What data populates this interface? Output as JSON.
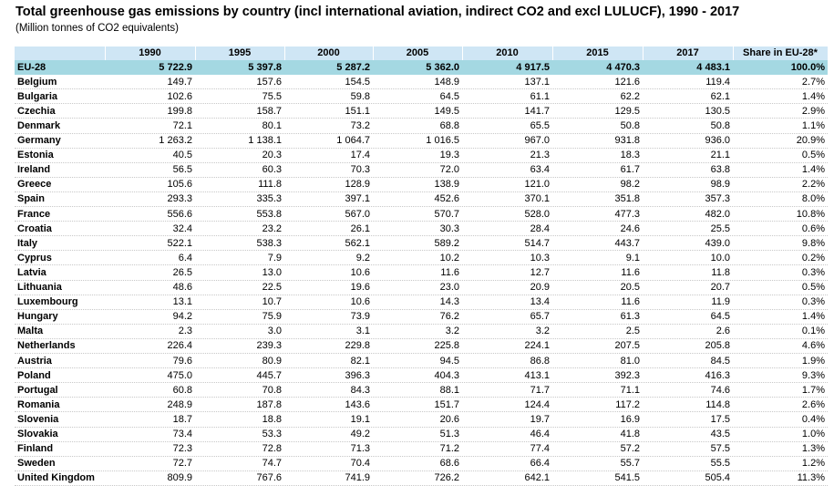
{
  "header": {
    "title": "Total greenhouse gas emissions by country (incl international aviation, indirect CO2 and excl LULUCF), 1990 - 2017",
    "subtitle": "(Million tonnes of CO2 equivalents)"
  },
  "table": {
    "columns": [
      "1990",
      "1995",
      "2000",
      "2005",
      "2010",
      "2015",
      "2017",
      "Share in EU-28*"
    ],
    "rows": [
      [
        "EU-28",
        "5 722.9",
        "5 397.8",
        "5 287.2",
        "5 362.0",
        "4 917.5",
        "4 470.3",
        "4 483.1",
        "100.0%"
      ],
      [
        "Belgium",
        "149.7",
        "157.6",
        "154.5",
        "148.9",
        "137.1",
        "121.6",
        "119.4",
        "2.7%"
      ],
      [
        "Bulgaria",
        "102.6",
        "75.5",
        "59.8",
        "64.5",
        "61.1",
        "62.2",
        "62.1",
        "1.4%"
      ],
      [
        "Czechia",
        "199.8",
        "158.7",
        "151.1",
        "149.5",
        "141.7",
        "129.5",
        "130.5",
        "2.9%"
      ],
      [
        "Denmark",
        "72.1",
        "80.1",
        "73.2",
        "68.8",
        "65.5",
        "50.8",
        "50.8",
        "1.1%"
      ],
      [
        "Germany",
        "1 263.2",
        "1 138.1",
        "1 064.7",
        "1 016.5",
        "967.0",
        "931.8",
        "936.0",
        "20.9%"
      ],
      [
        "Estonia",
        "40.5",
        "20.3",
        "17.4",
        "19.3",
        "21.3",
        "18.3",
        "21.1",
        "0.5%"
      ],
      [
        "Ireland",
        "56.5",
        "60.3",
        "70.3",
        "72.0",
        "63.4",
        "61.7",
        "63.8",
        "1.4%"
      ],
      [
        "Greece",
        "105.6",
        "111.8",
        "128.9",
        "138.9",
        "121.0",
        "98.2",
        "98.9",
        "2.2%"
      ],
      [
        "Spain",
        "293.3",
        "335.3",
        "397.1",
        "452.6",
        "370.1",
        "351.8",
        "357.3",
        "8.0%"
      ],
      [
        "France",
        "556.6",
        "553.8",
        "567.0",
        "570.7",
        "528.0",
        "477.3",
        "482.0",
        "10.8%"
      ],
      [
        "Croatia",
        "32.4",
        "23.2",
        "26.1",
        "30.3",
        "28.4",
        "24.6",
        "25.5",
        "0.6%"
      ],
      [
        "Italy",
        "522.1",
        "538.3",
        "562.1",
        "589.2",
        "514.7",
        "443.7",
        "439.0",
        "9.8%"
      ],
      [
        "Cyprus",
        "6.4",
        "7.9",
        "9.2",
        "10.2",
        "10.3",
        "9.1",
        "10.0",
        "0.2%"
      ],
      [
        "Latvia",
        "26.5",
        "13.0",
        "10.6",
        "11.6",
        "12.7",
        "11.6",
        "11.8",
        "0.3%"
      ],
      [
        "Lithuania",
        "48.6",
        "22.5",
        "19.6",
        "23.0",
        "20.9",
        "20.5",
        "20.7",
        "0.5%"
      ],
      [
        "Luxembourg",
        "13.1",
        "10.7",
        "10.6",
        "14.3",
        "13.4",
        "11.6",
        "11.9",
        "0.3%"
      ],
      [
        "Hungary",
        "94.2",
        "75.9",
        "73.9",
        "76.2",
        "65.7",
        "61.3",
        "64.5",
        "1.4%"
      ],
      [
        "Malta",
        "2.3",
        "3.0",
        "3.1",
        "3.2",
        "3.2",
        "2.5",
        "2.6",
        "0.1%"
      ],
      [
        "Netherlands",
        "226.4",
        "239.3",
        "229.8",
        "225.8",
        "224.1",
        "207.5",
        "205.8",
        "4.6%"
      ],
      [
        "Austria",
        "79.6",
        "80.9",
        "82.1",
        "94.5",
        "86.8",
        "81.0",
        "84.5",
        "1.9%"
      ],
      [
        "Poland",
        "475.0",
        "445.7",
        "396.3",
        "404.3",
        "413.1",
        "392.3",
        "416.3",
        "9.3%"
      ],
      [
        "Portugal",
        "60.8",
        "70.8",
        "84.3",
        "88.1",
        "71.7",
        "71.1",
        "74.6",
        "1.7%"
      ],
      [
        "Romania",
        "248.9",
        "187.8",
        "143.6",
        "151.7",
        "124.4",
        "117.2",
        "114.8",
        "2.6%"
      ],
      [
        "Slovenia",
        "18.7",
        "18.8",
        "19.1",
        "20.6",
        "19.7",
        "16.9",
        "17.5",
        "0.4%"
      ],
      [
        "Slovakia",
        "73.4",
        "53.3",
        "49.2",
        "51.3",
        "46.4",
        "41.8",
        "43.5",
        "1.0%"
      ],
      [
        "Finland",
        "72.3",
        "72.8",
        "71.3",
        "71.2",
        "77.4",
        "57.2",
        "57.5",
        "1.3%"
      ],
      [
        "Sweden",
        "72.7",
        "74.7",
        "70.4",
        "68.6",
        "66.4",
        "55.7",
        "55.5",
        "1.2%"
      ],
      [
        "United Kingdom",
        "809.9",
        "767.6",
        "741.9",
        "726.2",
        "642.1",
        "541.5",
        "505.4",
        "11.3%"
      ]
    ]
  }
}
